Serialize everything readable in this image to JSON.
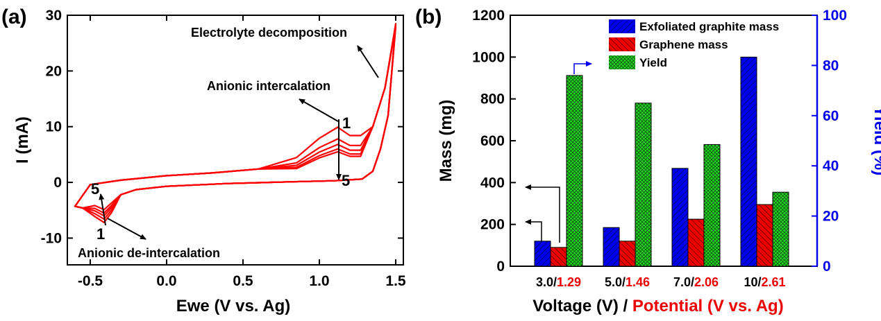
{
  "chart_data": [
    {
      "panel": "(a)",
      "type": "line",
      "xlabel": "Ewe (V vs. Ag)",
      "ylabel": "I (mA)",
      "xlim": [
        -0.65,
        1.55
      ],
      "ylim": [
        -14.8,
        30
      ],
      "xticks": [
        "-0.5",
        "0.0",
        "0.5",
        "1.0",
        "1.5"
      ],
      "xtick_values": [
        -0.5,
        0,
        0.5,
        1.0,
        1.5
      ],
      "yticks": [
        "-10",
        "0",
        "10",
        "20",
        "30"
      ],
      "ytick_values": [
        -10,
        0,
        10,
        20,
        30
      ],
      "series_color": "#ff0000",
      "cycles": [
        1,
        2,
        3,
        4,
        5
      ],
      "peak_currents_mA": [
        9.9,
        7.8,
        6.8,
        6.0,
        5.5
      ],
      "valley_currents_mA": [
        -7.2,
        -6.6,
        -6.0,
        -5.5,
        -4.9
      ],
      "anodic_end_current_mA": 28.5,
      "annotations": {
        "electrolyte": "Electrolyte decomposition",
        "intercalation": "Anionic intercalation",
        "deintercalation": "Anionic de-intercalation",
        "cycle_first_top": "1",
        "cycle_last_top": "5",
        "cycle_first_bottom": "1",
        "cycle_last_bottom": "5"
      }
    },
    {
      "panel": "(b)",
      "type": "bar",
      "xlabel_black": "Voltage (V) / ",
      "xlabel_red": "Potential (V vs. Ag)",
      "ylabel_left": "Mass (mg)",
      "ylabel_right": "Yield (%)",
      "ylim_left": [
        0,
        1200
      ],
      "ylim_right": [
        0,
        100
      ],
      "yticks_left": [
        "0",
        "200",
        "400",
        "600",
        "800",
        "1000",
        "1200"
      ],
      "ytick_values_left": [
        0,
        200,
        400,
        600,
        800,
        1000,
        1200
      ],
      "yticks_right": [
        "0",
        "20",
        "40",
        "60",
        "80",
        "100"
      ],
      "ytick_values_right": [
        0,
        20,
        40,
        60,
        80,
        100
      ],
      "categories": [
        {
          "voltage": "3.0/",
          "potential": "1.29"
        },
        {
          "voltage": "5.0/",
          "potential": "1.46"
        },
        {
          "voltage": "7.0/",
          "potential": "2.06"
        },
        {
          "voltage": "10/",
          "potential": "2.61"
        }
      ],
      "series": [
        {
          "name": "Exfoliated graphite mass",
          "axis": "left",
          "color": "#0000ee",
          "values": [
            120,
            185,
            468,
            1000
          ]
        },
        {
          "name": "Graphene mass",
          "axis": "left",
          "color": "#ee0000",
          "values": [
            90,
            120,
            225,
            295
          ]
        },
        {
          "name": "Yield",
          "axis": "right",
          "color": "#22dd22",
          "values": [
            76,
            65,
            48.5,
            29.5
          ]
        }
      ]
    }
  ],
  "colors": {
    "red": "#ff0000",
    "blue": "#0000ee",
    "green": "#22dd22",
    "axis_right": "#0000ee"
  }
}
